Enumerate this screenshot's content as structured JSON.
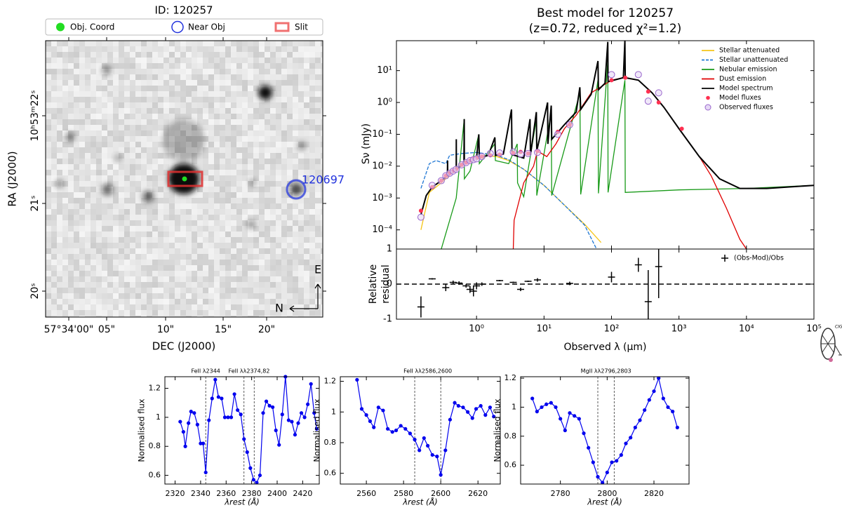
{
  "image_panel": {
    "title": "ID: 120257",
    "legend": [
      "Obj. Coord",
      "Near Obj",
      "Slit"
    ],
    "ylabel": "RA (J2000)",
    "xlabel": "DEC (J2000)",
    "ra_ticks": [
      "10ʰ53ᵐ22ˢ",
      "21ˢ",
      "20ˢ"
    ],
    "dec_ticks": [
      "57°34'00\"",
      "05\"",
      "10\"",
      "15\"",
      "20\""
    ],
    "near_obj_label": "120697",
    "compass": {
      "east": "E",
      "north": "N"
    }
  },
  "logo": "CIGALE",
  "chart_data": [
    {
      "type": "sed",
      "title": "Best model for 120257",
      "subtitle": "(z=0.72, reduced χ²=1.2)",
      "ylabel": "Sν (mJy)",
      "logx": true,
      "logy": true,
      "legend": "upper right",
      "xlim": [
        0.065,
        100000
      ],
      "ylim": [
        2.5e-05,
        87
      ],
      "yticks": [
        {
          "value": 0.0001,
          "label": "10⁻⁴"
        },
        {
          "value": 0.001,
          "label": "10⁻³"
        },
        {
          "value": 0.01,
          "label": "10⁻²"
        },
        {
          "value": 0.1,
          "label": "10⁻¹"
        },
        {
          "value": 1,
          "label": "10⁰"
        },
        {
          "value": 10,
          "label": "10¹"
        }
      ],
      "series": [
        {
          "name": "Stellar attenuated",
          "kind": "line",
          "color": "#f5c518",
          "x": [
            0.15,
            0.2,
            0.3,
            0.5,
            0.8,
            1.2,
            2,
            3,
            5,
            10,
            20,
            40,
            70
          ],
          "values": [
            0.0001,
            0.0015,
            0.003,
            0.008,
            0.016,
            0.022,
            0.02,
            0.015,
            0.008,
            0.0025,
            0.0006,
            0.00015,
            4e-05
          ]
        },
        {
          "name": "Stellar unattenuated",
          "kind": "dashed",
          "color": "#1f77d4",
          "x": [
            0.15,
            0.2,
            0.25,
            0.35,
            0.4,
            0.6,
            1,
            2,
            3,
            5,
            10,
            20,
            40,
            60
          ],
          "values": [
            0.002,
            0.012,
            0.015,
            0.012,
            0.022,
            0.025,
            0.027,
            0.022,
            0.016,
            0.008,
            0.0025,
            0.0006,
            0.00014,
            2.5e-05
          ]
        },
        {
          "name": "Nebular emission",
          "kind": "line",
          "color": "#189a18",
          "x": [
            0.3,
            0.4,
            0.5,
            0.656,
            0.66,
            0.8,
            1.08,
            1.1,
            1.87,
            1.9,
            3,
            4,
            4.05,
            5,
            7.7,
            7.8,
            12.8,
            13,
            34,
            35,
            63,
            64,
            88,
            89,
            158,
            160,
            1000,
            10000,
            100000
          ],
          "values": [
            2.5e-05,
            0.0002,
            0.001,
            0.3,
            0.004,
            0.007,
            0.1,
            0.012,
            0.05,
            0.015,
            0.012,
            0.05,
            0.003,
            0.0011,
            0.3,
            0.0012,
            0.5,
            0.0012,
            2,
            0.0013,
            5,
            0.0014,
            20,
            0.0015,
            5,
            0.0015,
            0.0018,
            0.002,
            0.0025
          ]
        },
        {
          "name": "Dust emission",
          "kind": "line",
          "color": "#e00000",
          "x": [
            3.5,
            3.6,
            5,
            7,
            8,
            11,
            15,
            20,
            30,
            50,
            100,
            150,
            250,
            400,
            600,
            1000,
            2000,
            3000,
            5000,
            8000,
            10000
          ],
          "values": [
            2.5e-05,
            0.0002,
            0.003,
            0.01,
            0.03,
            0.02,
            0.05,
            0.15,
            0.4,
            2,
            5,
            6,
            5,
            2,
            0.7,
            0.15,
            0.02,
            0.005,
            0.0005,
            5e-05,
            2.5e-05
          ]
        },
        {
          "name": "Model spectrum",
          "kind": "line",
          "color": "#000000",
          "x": [
            0.15,
            0.18,
            0.22,
            0.3,
            0.37,
            0.372,
            0.374,
            0.45,
            0.5,
            0.501,
            0.502,
            0.65,
            0.656,
            0.66,
            0.8,
            1.0,
            1.08,
            1.1,
            1.5,
            1.87,
            1.9,
            2.5,
            3.3,
            3.35,
            5,
            6.2,
            6.3,
            7.7,
            7.8,
            11.3,
            11.4,
            12.8,
            13,
            20,
            30,
            34,
            35,
            50,
            63,
            64,
            80,
            88,
            89,
            150,
            158,
            160,
            250,
            400,
            600,
            1000,
            2000,
            4000,
            8000,
            20000,
            100000
          ],
          "values": [
            0.0003,
            0.0012,
            0.0022,
            0.0035,
            0.005,
            0.015,
            0.005,
            0.007,
            0.008,
            0.07,
            0.008,
            0.012,
            0.3,
            0.012,
            0.015,
            0.018,
            0.1,
            0.018,
            0.022,
            0.08,
            0.022,
            0.024,
            0.6,
            0.023,
            0.018,
            0.3,
            0.022,
            0.5,
            0.03,
            1,
            0.05,
            0.8,
            0.07,
            0.2,
            0.5,
            3,
            0.6,
            1.8,
            20,
            2.5,
            4,
            80,
            4.5,
            6,
            90,
            6,
            5,
            2,
            0.7,
            0.15,
            0.02,
            0.004,
            0.002,
            0.002,
            0.0025
          ]
        },
        {
          "name": "Model fluxes",
          "kind": "points",
          "color": "#ff3050",
          "x": [
            0.15,
            0.22,
            0.3,
            0.35,
            0.4,
            0.45,
            0.5,
            0.6,
            0.7,
            0.8,
            0.9,
            1.0,
            1.2,
            1.6,
            2.2,
            3.5,
            4.5,
            5.8,
            8,
            16,
            24,
            100,
            160,
            350,
            500,
            1100
          ],
          "values": [
            0.0004,
            0.0022,
            0.0035,
            0.005,
            0.006,
            0.007,
            0.008,
            0.011,
            0.013,
            0.015,
            0.017,
            0.018,
            0.02,
            0.022,
            0.023,
            0.026,
            0.028,
            0.025,
            0.03,
            0.12,
            0.2,
            5,
            6,
            2.2,
            1,
            0.15
          ]
        },
        {
          "name": "Observed fluxes",
          "kind": "open",
          "color": "#9966cc",
          "x": [
            0.15,
            0.22,
            0.3,
            0.35,
            0.4,
            0.45,
            0.5,
            0.6,
            0.7,
            0.8,
            0.9,
            1.0,
            1.2,
            1.6,
            2.2,
            3.5,
            4.5,
            5.8,
            8,
            16,
            24,
            100,
            250,
            350,
            500
          ],
          "values": [
            0.00025,
            0.0025,
            0.0035,
            0.005,
            0.006,
            0.007,
            0.008,
            0.011,
            0.013,
            0.015,
            0.016,
            0.017,
            0.02,
            0.025,
            0.026,
            0.028,
            0.024,
            0.025,
            0.027,
            0.1,
            0.2,
            7.5,
            7.5,
            1.1,
            2.0
          ]
        }
      ]
    },
    {
      "type": "residual",
      "ylabel_lines": [
        "Relative",
        "residual"
      ],
      "xlabel": "Observed λ (μm)",
      "logx": true,
      "xlim": [
        0.065,
        100000
      ],
      "ylim": [
        -1,
        1
      ],
      "xticks": [
        {
          "value": 1,
          "label": "10⁰"
        },
        {
          "value": 10,
          "label": "10¹"
        },
        {
          "value": 100,
          "label": "10²"
        },
        {
          "value": 1000,
          "label": "10³"
        },
        {
          "value": 10000,
          "label": "10⁴"
        },
        {
          "value": 100000,
          "label": "10⁵"
        }
      ],
      "yticks": [
        -1,
        0,
        1
      ],
      "series": [
        {
          "name": "(Obs-Mod)/Obs",
          "color": "#000000",
          "x": [
            0.15,
            0.22,
            0.35,
            0.45,
            0.55,
            0.7,
            0.8,
            0.9,
            1.0,
            1.2,
            2.2,
            3.5,
            4.5,
            5.8,
            8,
            24,
            100,
            250,
            350,
            500
          ],
          "values": [
            -0.65,
            0.15,
            -0.1,
            0.05,
            0.03,
            -0.05,
            -0.15,
            -0.2,
            -0.05,
            0.0,
            0.1,
            0.05,
            -0.15,
            0.08,
            0.12,
            0.02,
            0.2,
            0.55,
            -0.5,
            0.5
          ],
          "errors": [
            0.3,
            0.02,
            0.1,
            0.05,
            0.05,
            0.05,
            0.1,
            0.15,
            0.1,
            0.05,
            0.02,
            0.02,
            0.05,
            0.02,
            0.05,
            0.05,
            0.15,
            0.2,
            0.9,
            0.9
          ]
        }
      ]
    },
    {
      "type": "spectrum",
      "xlabel": "λrest (Å)",
      "ylabel": "Normalised flux",
      "color": "#0000ee",
      "xlim": [
        2312,
        2433
      ],
      "ylim": [
        0.54,
        1.28
      ],
      "xticks": [
        2320,
        2340,
        2360,
        2380,
        2400,
        2420
      ],
      "yticks": [
        0.6,
        0.8,
        1.0,
        1.2
      ],
      "x": [
        2324,
        2326.5,
        2328,
        2330.5,
        2332.5,
        2335,
        2337.5,
        2340,
        2342,
        2344,
        2346.5,
        2349,
        2351.5,
        2354,
        2356.5,
        2359,
        2361.5,
        2364,
        2366.5,
        2369,
        2371.5,
        2374,
        2376.5,
        2379,
        2381.5,
        2384,
        2386.5,
        2389,
        2391.5,
        2394,
        2396.5,
        2399,
        2401.5,
        2404,
        2406.5,
        2409,
        2411.5,
        2414,
        2416.5,
        2419,
        2421.5,
        2424,
        2426.5,
        2429,
        2431
      ],
      "values": [
        0.97,
        0.9,
        0.8,
        0.96,
        1.04,
        1.03,
        0.95,
        0.82,
        0.82,
        0.62,
        0.98,
        1.13,
        1.26,
        1.14,
        1.13,
        1.0,
        1.0,
        1.0,
        1.16,
        1.05,
        1.02,
        0.85,
        0.76,
        0.65,
        0.57,
        0.55,
        0.6,
        1.03,
        1.11,
        1.08,
        1.07,
        0.91,
        0.81,
        1.02,
        1.28,
        0.98,
        0.97,
        0.88,
        0.96,
        1.03,
        1.0,
        1.09,
        1.23,
        1.03,
        0.92
      ],
      "lines": [
        2344,
        2374,
        2382
      ],
      "annotations": [
        {
          "text": "FeII λ2344",
          "lines": [
            0
          ]
        },
        {
          "text": "FeII λλ2374,82",
          "lines": [
            1,
            2
          ]
        }
      ]
    },
    {
      "type": "spectrum",
      "xlabel": "λrest (Å)",
      "ylabel": "Normalised flux",
      "color": "#0000ee",
      "xlim": [
        2546,
        2632
      ],
      "ylim": [
        0.53,
        1.23
      ],
      "xticks": [
        2560,
        2580,
        2600,
        2620
      ],
      "yticks": [
        0.6,
        0.8,
        1.0,
        1.2
      ],
      "x": [
        2555,
        2557.5,
        2560,
        2562,
        2564,
        2566.5,
        2569,
        2571.5,
        2574,
        2576,
        2578.5,
        2581,
        2583.5,
        2586,
        2588.5,
        2591,
        2593,
        2595.5,
        2598,
        2600,
        2602.5,
        2605,
        2607.5,
        2609.5,
        2612,
        2614.5,
        2617,
        2619,
        2621.5,
        2624,
        2626.5,
        2628.5
      ],
      "values": [
        1.21,
        1.02,
        0.98,
        0.94,
        0.9,
        1.03,
        1.01,
        0.89,
        0.87,
        0.88,
        0.91,
        0.89,
        0.86,
        0.82,
        0.75,
        0.83,
        0.78,
        0.72,
        0.71,
        0.59,
        0.75,
        0.95,
        1.06,
        1.04,
        1.03,
        1.0,
        0.96,
        1.02,
        1.04,
        0.98,
        1.03,
        0.97
      ],
      "lines": [
        2586,
        2600
      ],
      "annotations": [
        {
          "text": "FeII λλ2586,2600",
          "lines": [
            0,
            1
          ]
        }
      ]
    },
    {
      "type": "spectrum",
      "xlabel": "λrest (Å)",
      "ylabel": "Normalised flux",
      "color": "#0000ee",
      "xlim": [
        2763,
        2835
      ],
      "ylim": [
        0.47,
        1.21
      ],
      "xticks": [
        2780,
        2800,
        2820
      ],
      "yticks": [
        0.6,
        0.8,
        1.0,
        1.2
      ],
      "x": [
        2768,
        2770,
        2772,
        2774,
        2776,
        2778,
        2780,
        2782,
        2784,
        2786,
        2788,
        2790,
        2792,
        2794,
        2796,
        2798,
        2800,
        2802,
        2804,
        2806,
        2808,
        2810,
        2812,
        2814,
        2816,
        2818,
        2820,
        2822,
        2824,
        2826,
        2828,
        2830
      ],
      "values": [
        1.06,
        0.97,
        1.0,
        1.02,
        1.03,
        1.0,
        0.92,
        0.84,
        0.96,
        0.94,
        0.92,
        0.82,
        0.72,
        0.62,
        0.52,
        0.48,
        0.55,
        0.62,
        0.63,
        0.67,
        0.75,
        0.79,
        0.86,
        0.91,
        0.98,
        1.05,
        1.11,
        1.2,
        1.06,
        1.0,
        0.97,
        0.86
      ],
      "lines": [
        2796,
        2803
      ],
      "annotations": [
        {
          "text": "MgII λλ2796,2803",
          "lines": [
            0,
            1
          ]
        }
      ]
    }
  ]
}
